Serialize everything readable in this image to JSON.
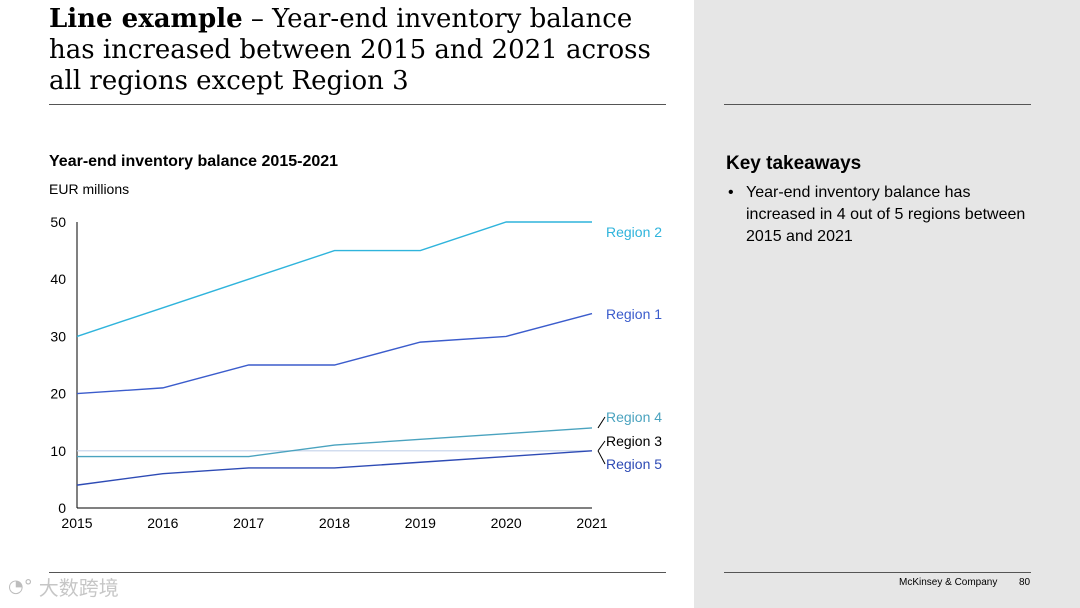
{
  "slide": {
    "title_bold": "Line example",
    "title_rest": " – Year-end inventory balance has increased between 2015 and 2021 across all regions except Region 3",
    "footer_company": "McKinsey & Company",
    "page_number": "80",
    "watermark": "大数跨境"
  },
  "chart_data": {
    "type": "line",
    "title": "Year-end inventory balance 2015-2021",
    "ylabel": "EUR millions",
    "xlabel": "",
    "x": [
      "2015",
      "2016",
      "2017",
      "2018",
      "2019",
      "2020",
      "2021"
    ],
    "ylim": [
      0,
      50
    ],
    "yticks": [
      0,
      10,
      20,
      30,
      40,
      50
    ],
    "grid": false,
    "series": [
      {
        "name": "Region 2",
        "color": "#2fb4dc",
        "values": [
          30,
          35,
          40,
          45,
          45,
          50,
          50
        ]
      },
      {
        "name": "Region 1",
        "color": "#3b5ccc",
        "values": [
          20,
          21,
          25,
          25,
          29,
          30,
          34
        ]
      },
      {
        "name": "Region 4",
        "color": "#4aa3bf",
        "values": [
          9,
          9,
          9,
          11,
          12,
          13,
          14
        ]
      },
      {
        "name": "Region 3",
        "color": "#c4d2ea",
        "values": [
          10,
          10,
          10,
          10,
          10,
          10,
          10
        ]
      },
      {
        "name": "Region 5",
        "color": "#2e4bb5",
        "values": [
          4,
          6,
          7,
          7,
          8,
          9,
          10
        ]
      }
    ]
  },
  "takeaways": {
    "title": "Key takeaways",
    "items": [
      "Year-end inventory balance has increased in 4 out of 5 regions between 2015 and 2021"
    ]
  }
}
